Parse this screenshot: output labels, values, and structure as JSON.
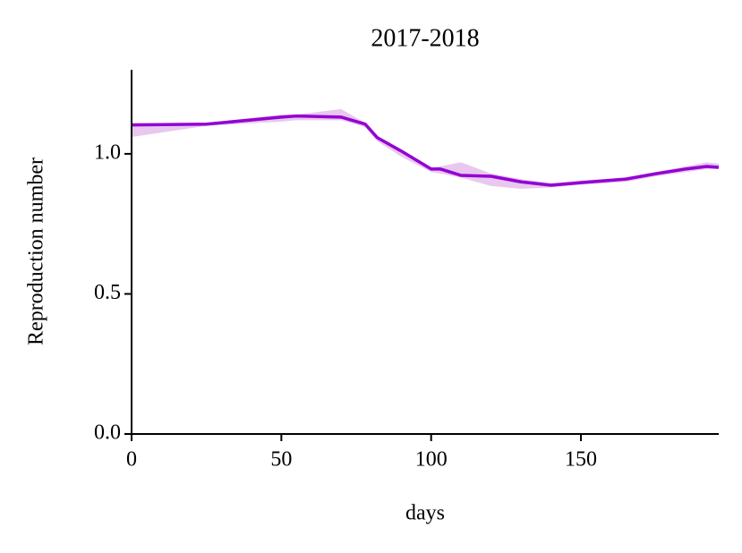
{
  "chart_data": {
    "type": "line",
    "title": "2017-2018",
    "xlabel": "days",
    "ylabel": "Reproduction number",
    "x": [
      0,
      25,
      50,
      55,
      70,
      78,
      82,
      90,
      100,
      103,
      110,
      120,
      130,
      140,
      150,
      165,
      175,
      185,
      192,
      196
    ],
    "values": [
      1.103,
      1.106,
      1.131,
      1.135,
      1.131,
      1.106,
      1.058,
      1.01,
      0.946,
      0.946,
      0.923,
      0.92,
      0.9,
      0.888,
      0.897,
      0.91,
      0.929,
      0.946,
      0.955,
      0.952
    ],
    "color": "#9400d3",
    "band_lower": [
      1.06,
      1.1,
      1.115,
      1.12,
      1.12,
      1.095,
      1.045,
      0.99,
      0.935,
      0.93,
      0.915,
      0.885,
      0.875,
      0.88,
      0.89,
      0.9,
      0.92,
      0.935,
      0.945,
      0.945
    ],
    "band_upper": [
      1.11,
      1.11,
      1.14,
      1.14,
      1.16,
      1.11,
      1.06,
      1.01,
      0.95,
      0.955,
      0.97,
      0.93,
      0.91,
      0.895,
      0.905,
      0.915,
      0.935,
      0.955,
      0.97,
      0.965
    ],
    "band_color": "#e8c8ee",
    "xlim": [
      0,
      196
    ],
    "xticks": [
      0,
      50,
      100,
      150
    ],
    "ylim": [
      0,
      1.3
    ],
    "yticks": [
      {
        "value": 0,
        "label": "0.0"
      },
      {
        "value": 0.5,
        "label": "0.5"
      },
      {
        "value": 1,
        "label": "1.0"
      }
    ]
  }
}
